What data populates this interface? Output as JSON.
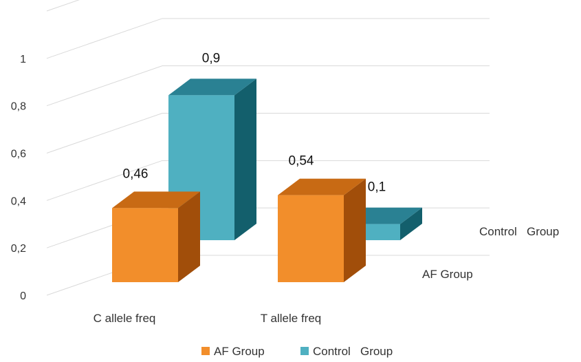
{
  "chart_data": {
    "type": "bar",
    "title": "",
    "xlabel": "",
    "ylabel": "",
    "ylim": [
      0,
      1.2
    ],
    "yticks": [
      "0",
      "0,2",
      "0,4",
      "0,6",
      "0,8",
      "1"
    ],
    "categories": [
      "C allele freq",
      "T allele freq"
    ],
    "series": [
      {
        "name": "AF Group",
        "values": [
          0.46,
          0.54
        ],
        "labels": [
          "0,46",
          "0,54"
        ],
        "color": "#F28E2B",
        "side_color": "#A14E0A",
        "top_color": "#C86A14"
      },
      {
        "name": "Control   Group",
        "values": [
          0.9,
          0.1
        ],
        "labels": [
          "0,9",
          "0,1"
        ],
        "color": "#4FB0C1",
        "side_color": "#135F6C",
        "top_color": "#2A8193"
      }
    ],
    "depth_axis_labels": [
      "Control   Group",
      "AF Group"
    ],
    "legend": {
      "position": "bottom"
    },
    "grid": true,
    "style": "3d-column"
  }
}
